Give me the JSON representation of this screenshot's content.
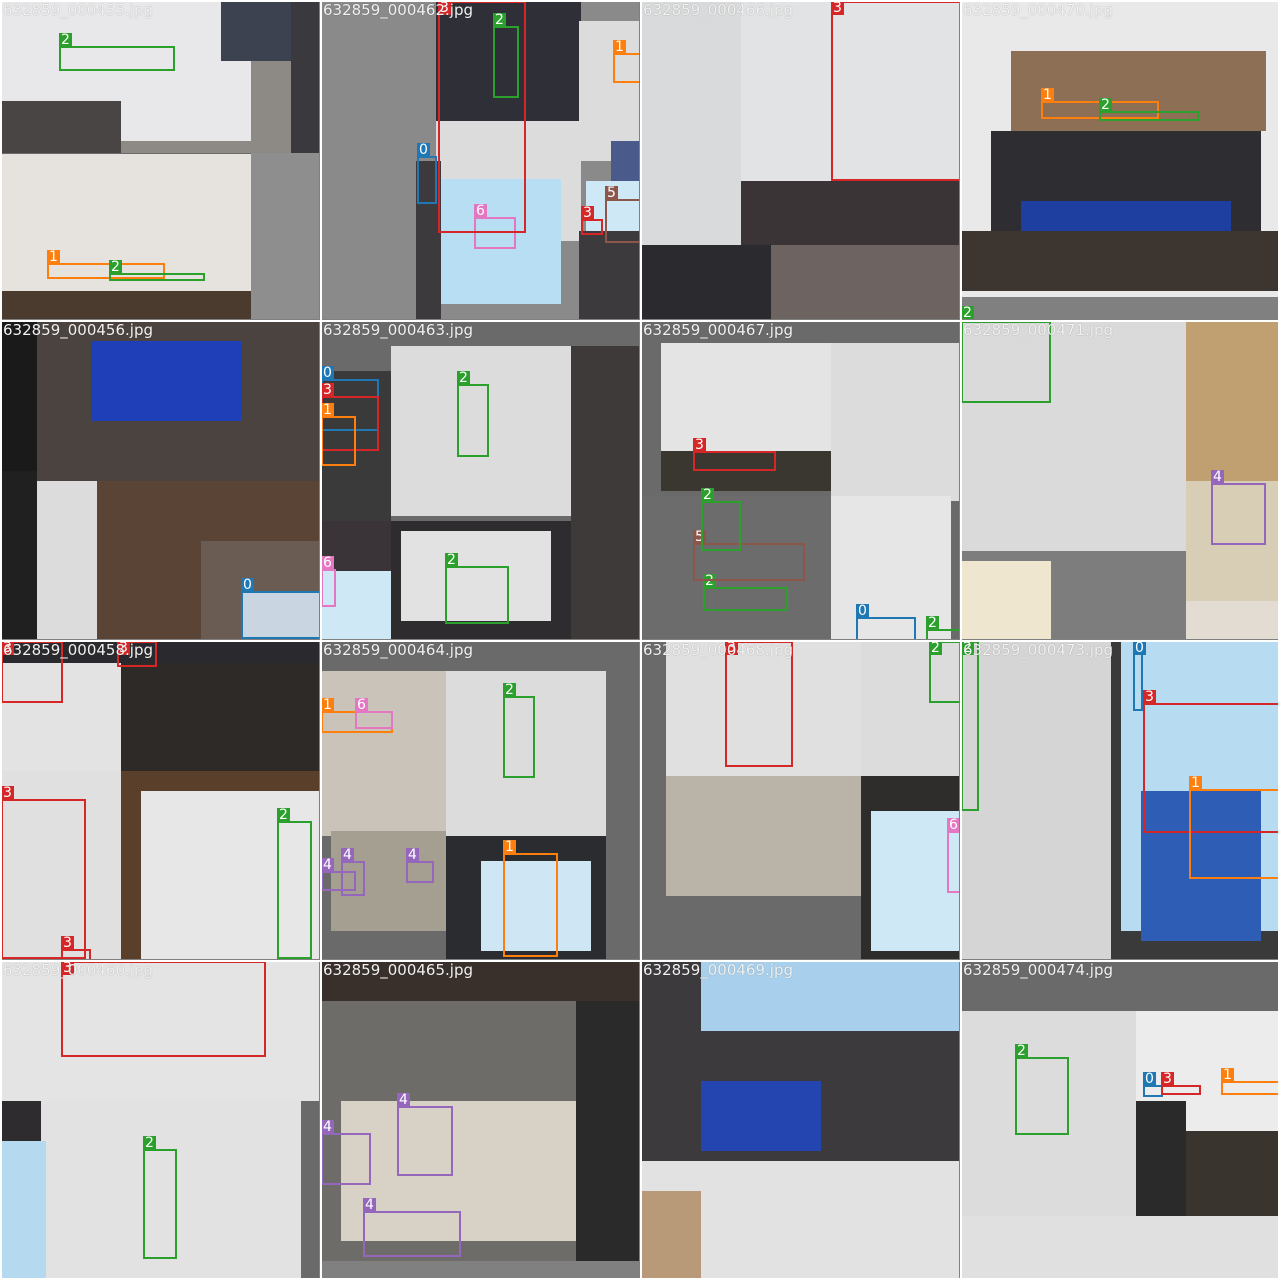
{
  "class_colors": {
    "0": "#1f77b4",
    "1": "#ff7f0e",
    "2": "#2ca02c",
    "3": "#d62728",
    "4": "#9467bd",
    "5": "#8c564b",
    "6": "#e377c2"
  },
  "tiles": [
    {
      "filename": "632859_000455.jpg",
      "blocks": [
        {
          "c": "#8d8a86"
        },
        {
          "c": "#e8e8ea"
        },
        {
          "c": "#3d4250"
        },
        {
          "c": "#4a4545"
        },
        {
          "c": "#e6e3df"
        },
        {
          "c": "#4b3b2e"
        },
        {
          "c": "#3a3a3e"
        },
        {
          "c": "#8e8e8e"
        }
      ],
      "boxes": [
        {
          "label": "2"
        },
        {
          "label": "1"
        },
        {
          "label": "2"
        }
      ]
    },
    {
      "filename": "632859_000462.jpg",
      "blocks": [
        {
          "c": "#8a8a8a"
        },
        {
          "c": "#dcdcdc"
        },
        {
          "c": "#2f3037"
        },
        {
          "c": "#b7def3"
        },
        {
          "c": "#3c3a3c"
        },
        {
          "c": "#dcdcdc"
        },
        {
          "c": "#cfe8f6"
        },
        {
          "c": "#4a5a8a"
        },
        {
          "c": "#3c3a3c"
        }
      ],
      "boxes": [
        {
          "label": "2"
        },
        {
          "label": "1"
        },
        {
          "label": "0"
        },
        {
          "label": "6"
        },
        {
          "label": "3"
        },
        {
          "label": "5"
        },
        {
          "label": "3"
        }
      ]
    },
    {
      "filename": "632859_000466.jpg",
      "blocks": [
        {
          "c": "#d9dadb"
        },
        {
          "c": "#3a3436"
        },
        {
          "c": "#e2e3e4"
        },
        {
          "c": "#5a5553"
        },
        {
          "c": "#2b2a2e"
        },
        {
          "c": "#6d6461"
        }
      ],
      "boxes": [
        {
          "label": "3"
        }
      ]
    },
    {
      "filename": "632859_000470.jpg",
      "blocks": [
        {
          "c": "#e9e9e9"
        },
        {
          "c": "#8d6f55"
        },
        {
          "c": "#2e2e32"
        },
        {
          "c": "#1e3ea0"
        },
        {
          "c": "#3c3530"
        },
        {
          "c": "#808080"
        }
      ],
      "boxes": [
        {
          "label": "1"
        },
        {
          "label": "2"
        },
        {
          "label": "2"
        }
      ]
    },
    {
      "filename": "632859_000456.jpg",
      "blocks": [
        {
          "c": "#1a1a1a"
        },
        {
          "c": "#4b4340"
        },
        {
          "c": "#1f3fb8"
        },
        {
          "c": "#dcdcdc"
        },
        {
          "c": "#5a4436"
        },
        {
          "c": "#6a5c52"
        },
        {
          "c": "#202020"
        },
        {
          "c": "#c9d5e0"
        }
      ],
      "boxes": [
        {
          "label": "0"
        }
      ]
    },
    {
      "filename": "632859_000463.jpg",
      "blocks": [
        {
          "c": "#6a6a6a"
        },
        {
          "c": "#3a3a3a"
        },
        {
          "c": "#dcdcdc"
        },
        {
          "c": "#3a3438"
        },
        {
          "c": "#2e2c2f"
        },
        {
          "c": "#e2e2e2"
        },
        {
          "c": "#3e3a3a"
        },
        {
          "c": "#cfe8f6"
        },
        {
          "c": "#6a6a6a"
        }
      ],
      "boxes": [
        {
          "label": "0"
        },
        {
          "label": "3"
        },
        {
          "label": "1"
        },
        {
          "label": "2"
        },
        {
          "label": "2"
        },
        {
          "label": "6"
        }
      ]
    },
    {
      "filename": "632859_000467.jpg",
      "blocks": [
        {
          "c": "#6a6a6a"
        },
        {
          "c": "#e4e4e4"
        },
        {
          "c": "#3a3630"
        },
        {
          "c": "#dcdcdc"
        },
        {
          "c": "#bfe2f5"
        },
        {
          "c": "#6d6c6c"
        },
        {
          "c": "#e6e6e6"
        },
        {
          "c": "#6a6a6a"
        }
      ],
      "boxes": [
        {
          "label": "3"
        },
        {
          "label": "2"
        },
        {
          "label": "5"
        },
        {
          "label": "2"
        },
        {
          "label": "0"
        },
        {
          "label": "2"
        }
      ]
    },
    {
      "filename": "632859_000471.jpg",
      "blocks": [
        {
          "c": "#dadada"
        },
        {
          "c": "#c0a070"
        },
        {
          "c": "#d8cdb5"
        },
        {
          "c": "#7d7d7d"
        },
        {
          "c": "#e3dcd3"
        },
        {
          "c": "#efe6d0"
        }
      ],
      "boxes": [
        {
          "label": ""
        },
        {
          "label": "4"
        }
      ]
    },
    {
      "filename": "632859_000458.jpg",
      "blocks": [
        {
          "c": "#e3e3e3"
        },
        {
          "c": "#2e2a28"
        },
        {
          "c": "#e0e0e0"
        },
        {
          "c": "#5a3f2a"
        },
        {
          "c": "#e7e7e7"
        },
        {
          "c": "#2a2a2e"
        }
      ],
      "boxes": [
        {
          "label": "3"
        },
        {
          "label": "3"
        },
        {
          "label": "3"
        },
        {
          "label": "2"
        },
        {
          "label": "3"
        }
      ]
    },
    {
      "filename": "632859_000464.jpg",
      "blocks": [
        {
          "c": "#6a6a6a"
        },
        {
          "c": "#c9c3ba"
        },
        {
          "c": "#dcdcdc"
        },
        {
          "c": "#a59f92"
        },
        {
          "c": "#2a2c30"
        },
        {
          "c": "#cfe6f5"
        },
        {
          "c": "#6a6a6a"
        }
      ],
      "boxes": [
        {
          "label": "1"
        },
        {
          "label": "6"
        },
        {
          "label": "2"
        },
        {
          "label": "4"
        },
        {
          "label": "4"
        },
        {
          "label": "4"
        },
        {
          "label": "1"
        }
      ]
    },
    {
      "filename": "632859_000468.jpg",
      "blocks": [
        {
          "c": "#6a6a6a"
        },
        {
          "c": "#e0e0e0"
        },
        {
          "c": "#dcdcdc"
        },
        {
          "c": "#bab3a8"
        },
        {
          "c": "#2f2c2c"
        },
        {
          "c": "#cfe8f6"
        }
      ],
      "boxes": [
        {
          "label": "3"
        },
        {
          "label": "2"
        },
        {
          "label": "6"
        }
      ]
    },
    {
      "filename": "632859_000473.jpg",
      "blocks": [
        {
          "c": "#d5d5d5"
        },
        {
          "c": "#3a3a3a"
        },
        {
          "c": "#b7dcf2"
        },
        {
          "c": "#2d5db5"
        }
      ],
      "boxes": [
        {
          "label": "2"
        },
        {
          "label": "0"
        },
        {
          "label": "3"
        },
        {
          "label": "1"
        }
      ]
    },
    {
      "filename": "632859_000460.jpg",
      "blocks": [
        {
          "c": "#e4e4e4"
        },
        {
          "c": "#2e2c2e"
        },
        {
          "c": "#e2e2e2"
        },
        {
          "c": "#b5d9ef"
        }
      ],
      "boxes": [
        {
          "label": "3"
        },
        {
          "label": "2"
        }
      ]
    },
    {
      "filename": "632859_000465.jpg",
      "blocks": [
        {
          "c": "#39302c"
        },
        {
          "c": "#6e6c68"
        },
        {
          "c": "#d8d2c6"
        },
        {
          "c": "#2b2a2a"
        },
        {
          "c": "#808080"
        }
      ],
      "boxes": [
        {
          "label": "4"
        },
        {
          "label": "4"
        },
        {
          "label": "4"
        }
      ]
    },
    {
      "filename": "632859_000469.jpg",
      "blocks": [
        {
          "c": "#3c3a3c"
        },
        {
          "c": "#a8d0ec"
        },
        {
          "c": "#2444b0"
        },
        {
          "c": "#e2e2e2"
        },
        {
          "c": "#b89a78"
        }
      ],
      "boxes": []
    },
    {
      "filename": "632859_000474.jpg",
      "blocks": [
        {
          "c": "#6a6a6a"
        },
        {
          "c": "#dcdcdc"
        },
        {
          "c": "#3a342e"
        },
        {
          "c": "#ececec"
        },
        {
          "c": "#2a2a2a"
        },
        {
          "c": "#e0e0e0"
        }
      ],
      "boxes": [
        {
          "label": "2"
        },
        {
          "label": "0"
        },
        {
          "label": "3"
        },
        {
          "label": "1"
        }
      ]
    }
  ]
}
